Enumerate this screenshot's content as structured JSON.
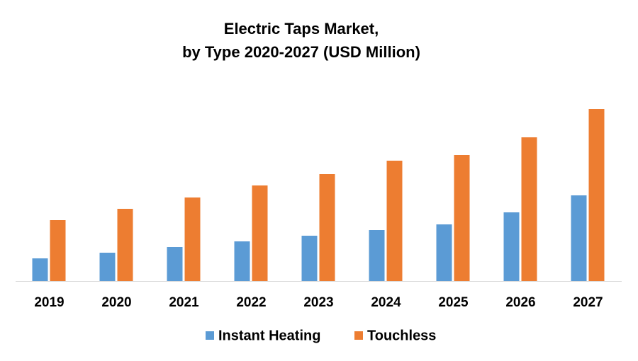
{
  "chart_data": {
    "type": "bar",
    "title_lines": [
      "Electric Taps Market,",
      "by Type 2020-2027 (USD Million)"
    ],
    "categories": [
      "2019",
      "2020",
      "2021",
      "2022",
      "2023",
      "2024",
      "2025",
      "2026",
      "2027"
    ],
    "series": [
      {
        "name": "Instant Heating",
        "color": "#5b9bd5",
        "values": [
          32,
          40,
          48,
          56,
          64,
          72,
          80,
          97,
          121
        ]
      },
      {
        "name": "Touchless",
        "color": "#ed7d31",
        "values": [
          86,
          102,
          118,
          135,
          151,
          170,
          178,
          203,
          243
        ]
      }
    ],
    "ylim": [
      0,
      250
    ],
    "grid": false,
    "legend": "bottom"
  }
}
